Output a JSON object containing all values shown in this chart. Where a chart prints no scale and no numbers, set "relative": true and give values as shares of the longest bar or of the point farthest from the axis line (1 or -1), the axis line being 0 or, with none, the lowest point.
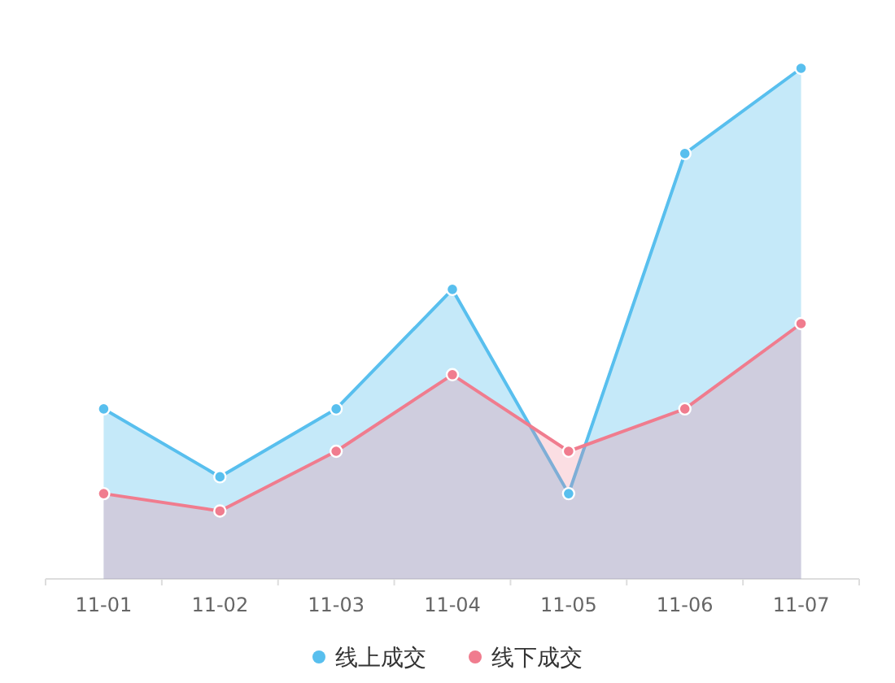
{
  "chart_data": {
    "type": "area",
    "relative": true,
    "categories": [
      "11-01",
      "11-02",
      "11-03",
      "11-04",
      "11-05",
      "11-06",
      "11-07"
    ],
    "series": [
      {
        "name": "线上成交",
        "color": "#58bfee",
        "values": [
          0.333,
          0.2,
          0.333,
          0.567,
          0.167,
          0.833,
          1
        ]
      },
      {
        "name": "线下成交",
        "color": "#f07c8e",
        "values": [
          0.167,
          0.133,
          0.25,
          0.4,
          0.25,
          0.333,
          0.5
        ]
      }
    ],
    "marker": "circle",
    "legend": "bottom"
  }
}
